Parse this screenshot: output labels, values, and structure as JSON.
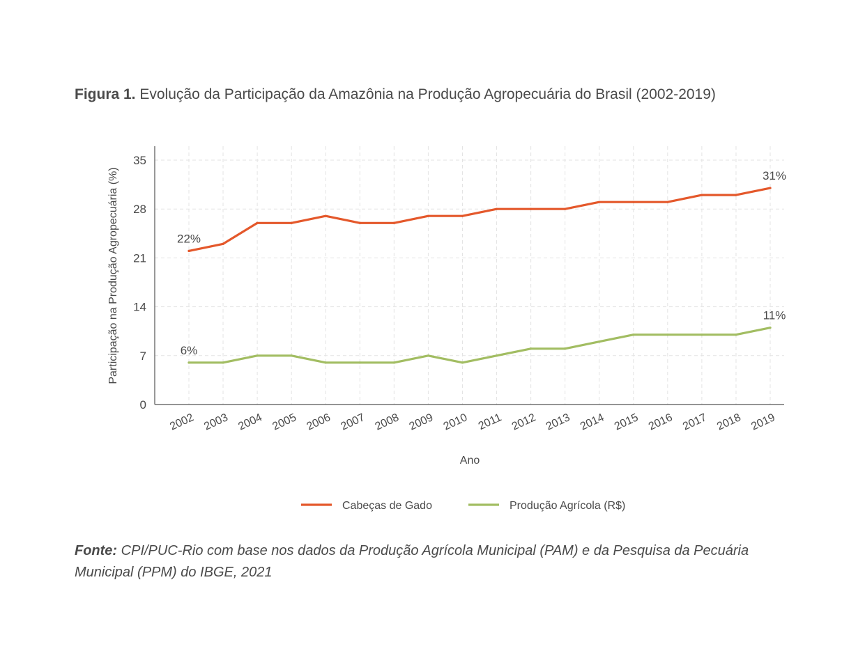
{
  "figure": {
    "title_lead": "Figura 1.",
    "title_text": "Evolução da Participação da Amazônia na Produção Agropecuária do Brasil (2002-2019)",
    "source_lead": "Fonte:",
    "source_text": "CPI/PUC-Rio com base nos dados da Produção Agrícola Municipal (PAM) e da Pesquisa da Pecuária Municipal (PPM) do IBGE, 2021"
  },
  "chart_data": {
    "type": "line",
    "title": "Evolução da Participação da Amazônia na Produção Agropecuária do Brasil (2002-2019)",
    "xlabel": "Ano",
    "ylabel": "Participação na Produção Agropecuária (%)",
    "x": [
      "2002",
      "2003",
      "2004",
      "2005",
      "2006",
      "2007",
      "2008",
      "2009",
      "2010",
      "2011",
      "2012",
      "2013",
      "2014",
      "2015",
      "2016",
      "2017",
      "2018",
      "2019"
    ],
    "ylim": [
      0,
      35
    ],
    "yticks": [
      0,
      7,
      14,
      21,
      28,
      35
    ],
    "grid": true,
    "legend": "bottom",
    "series": [
      {
        "name": "Cabeças de Gado",
        "color": "#e4582b",
        "values": [
          22,
          23,
          26,
          26,
          27,
          26,
          26,
          27,
          27,
          28,
          28,
          28,
          29,
          29,
          29,
          30,
          30,
          31
        ],
        "annotations": [
          {
            "index": 0,
            "text": "22%"
          },
          {
            "index": 17,
            "text": "31%"
          }
        ]
      },
      {
        "name": "Produção Agrícola (R$)",
        "color": "#a2bd62",
        "values": [
          6,
          6,
          7,
          7,
          6,
          6,
          6,
          7,
          6,
          7,
          8,
          8,
          9,
          10,
          10,
          10,
          10,
          11
        ],
        "annotations": [
          {
            "index": 0,
            "text": "6%"
          },
          {
            "index": 17,
            "text": "11%"
          }
        ]
      }
    ]
  }
}
